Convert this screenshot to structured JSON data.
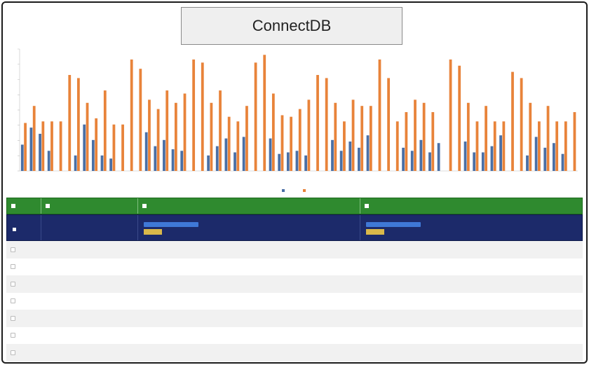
{
  "app": {
    "title": "ConnectDB"
  },
  "chart_data": {
    "type": "bar",
    "grid": false,
    "legend_placement": "bottom",
    "series": [
      {
        "color": "#4a6fa5",
        "values": [
          17,
          28,
          24,
          13,
          0,
          0,
          10,
          30,
          20,
          10,
          8,
          0,
          0,
          0,
          25,
          16,
          20,
          14,
          13,
          0,
          0,
          10,
          16,
          21,
          12,
          22,
          0,
          0,
          21,
          11,
          12,
          13,
          10,
          0,
          0,
          20,
          13,
          19,
          15,
          23,
          0,
          0,
          0,
          15,
          13,
          20,
          12,
          18,
          0,
          0,
          19,
          12,
          12,
          16,
          23,
          0,
          0,
          10,
          22,
          15,
          18,
          11,
          0
        ]
      },
      {
        "color": "#e8833a",
        "values": [
          31,
          42,
          32,
          32,
          32,
          62,
          60,
          44,
          34,
          52,
          30,
          30,
          72,
          66,
          46,
          40,
          52,
          44,
          50,
          72,
          70,
          44,
          52,
          35,
          32,
          42,
          70,
          75,
          50,
          36,
          35,
          40,
          46,
          62,
          60,
          44,
          32,
          46,
          42,
          42,
          72,
          60,
          32,
          38,
          46,
          44,
          38,
          0,
          72,
          68,
          44,
          32,
          42,
          32,
          32,
          64,
          60,
          44,
          32,
          42,
          32,
          32,
          38
        ]
      }
    ]
  },
  "table": {
    "headers": [
      "",
      "",
      ""
    ],
    "filter": {
      "col2_slider": "",
      "col2_apply": "",
      "col3_slider": "",
      "col3_apply": ""
    },
    "rows": [
      {
        "id": "",
        "v1": "",
        "v2": ""
      },
      {
        "id": "",
        "v1": "",
        "v2": ""
      },
      {
        "id": "",
        "v1": "",
        "v2": ""
      },
      {
        "id": "",
        "v1": "",
        "v2": ""
      },
      {
        "id": "",
        "v1": "",
        "v2": ""
      },
      {
        "id": "",
        "v1": "",
        "v2": ""
      },
      {
        "id": "",
        "v1": "",
        "v2": ""
      }
    ]
  }
}
